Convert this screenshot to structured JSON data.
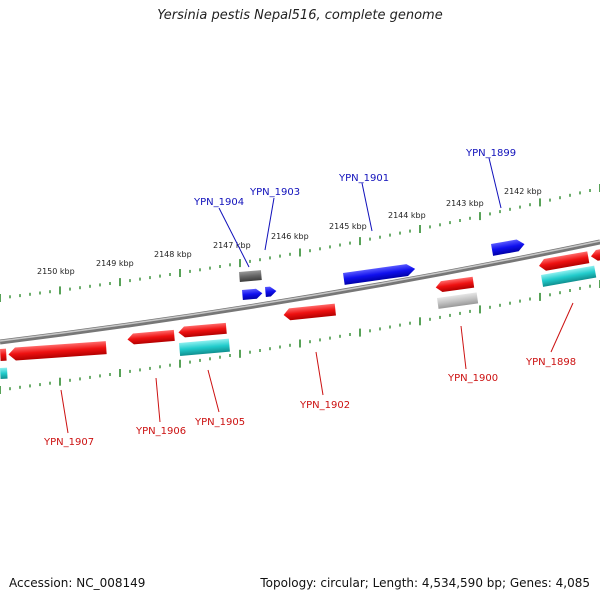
{
  "title": "Yersinia pestis Nepal516, complete genome",
  "footer": {
    "accession": "Accession: NC_008149",
    "summary": "Topology: circular; Length: 4,534,590 bp; Genes: 4,085"
  },
  "colors": {
    "backbone": "#8a8a8a",
    "tick": "#2e8b2e",
    "gene_red": "#ee1111",
    "gene_blue": "#1111dd",
    "gene_cyan": "#22cccc",
    "gene_grey": "#666666",
    "label_red": "#cc1111",
    "label_blue": "#1111bb"
  },
  "scale_labels": [
    "2150 kbp",
    "2149 kbp",
    "2148 kbp",
    "2147 kbp",
    "2146 kbp",
    "2145 kbp",
    "2144 kbp",
    "2143 kbp",
    "2142 kbp"
  ],
  "genes_upper": [
    "YPN_1904",
    "YPN_1903",
    "YPN_1901",
    "YPN_1899"
  ],
  "genes_lower": [
    "YPN_1907",
    "YPN_1906",
    "YPN_1905",
    "YPN_1902",
    "YPN_1900",
    "YPN_1898"
  ]
}
